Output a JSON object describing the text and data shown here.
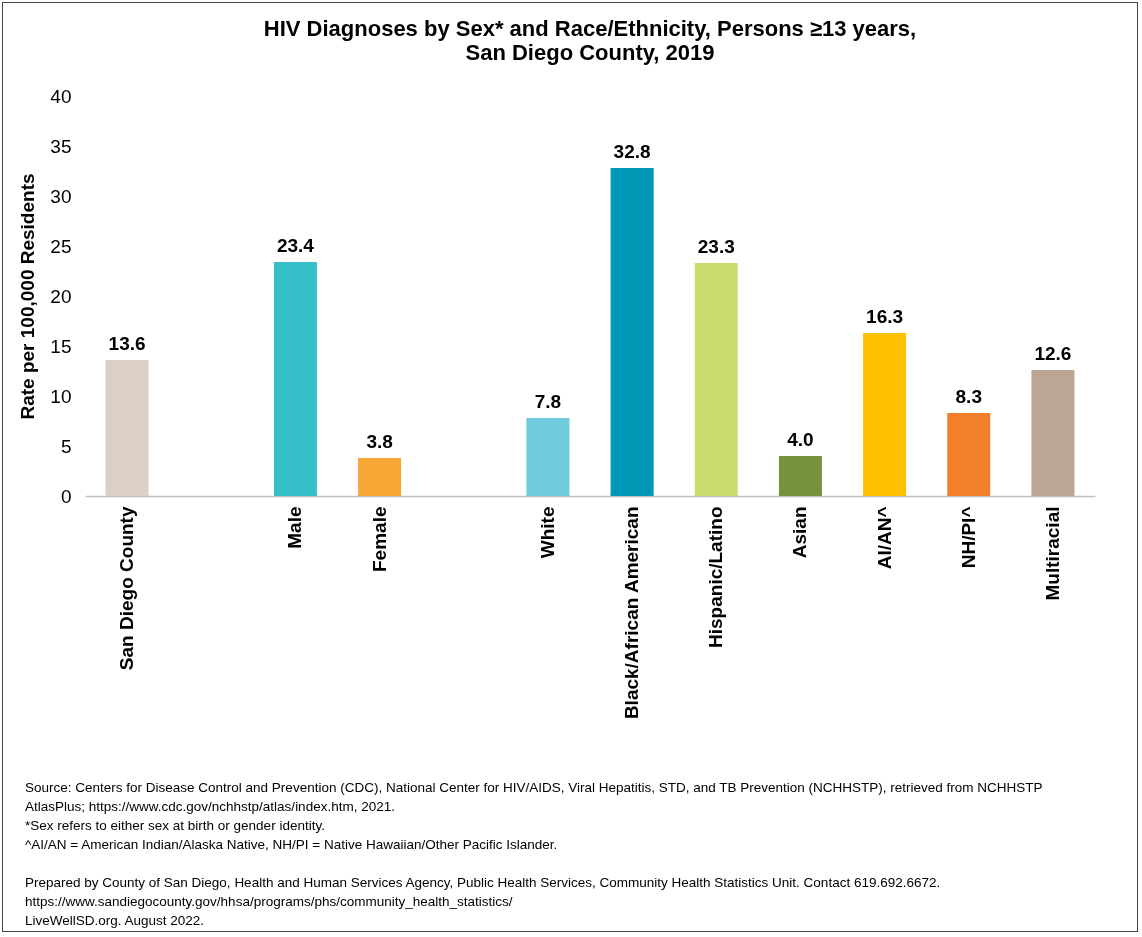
{
  "chart_data": {
    "type": "bar",
    "title": "HIV Diagnoses by Sex* and Race/Ethnicity, Persons ≥13 years,\nSan Diego County, 2019",
    "ylabel": "Rate per 100,000 Residents",
    "categories": [
      "San Diego County",
      null,
      "Male",
      "Female",
      null,
      "White",
      "Black/African American",
      "Hispanic/Latino",
      "Asian",
      "AI/AN^",
      "NH/PI^",
      "Multiracial"
    ],
    "values": [
      13.6,
      null,
      23.4,
      3.8,
      null,
      7.8,
      32.8,
      23.3,
      4.0,
      16.3,
      8.3,
      12.6
    ],
    "value_labels": [
      "13.6",
      null,
      "23.4",
      "3.8",
      null,
      "7.8",
      "32.8",
      "23.3",
      "4.0",
      "16.3",
      "8.3",
      "12.6"
    ],
    "colors": [
      "#dcd0c5",
      null,
      "#36bfc8",
      "#f7a535",
      null,
      "#6fcbdc",
      "#0097b6",
      "#c9dd6f",
      "#76923c",
      "#ffc000",
      "#f37f2a",
      "#baa692"
    ],
    "ylim": [
      0,
      40
    ],
    "yticks": [
      0,
      5,
      10,
      15,
      20,
      25,
      30,
      35,
      40
    ],
    "annotations": [
      "Source: Centers for Disease Control and Prevention (CDC), National Center for HIV/AIDS, Viral Hepatitis, STD, and TB Prevention (NCHHSTP), retrieved from NCHHSTP AtlasPlus; https://www.cdc.gov/nchhstp/atlas/index.htm,  2021.",
      "*Sex refers to either sex at birth or gender identity.",
      "^AI/AN = American Indian/Alaska Native, NH/PI = Native Hawaiian/Other Pacific Islander.",
      "Prepared by County of San Diego, Health and Human Services Agency, Public Health Services, Community Health Statistics Unit. Contact 619.692.6672.",
      "https://www.sandiegocounty.gov/hhsa/programs/phs/community_health_statistics/",
      "LiveWellSD.org. August 2022."
    ]
  }
}
